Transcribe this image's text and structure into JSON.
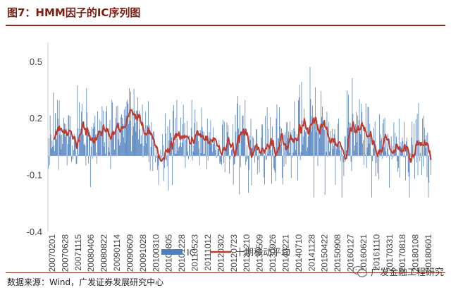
{
  "figure_title": "图7：HMM因子的IC序列图",
  "source_note": "数据来源：Wind，广发证券发展研究中心",
  "watermark": {
    "text": "广发金融工程研究",
    "icon": "wechat-icon"
  },
  "colors": {
    "title": "#7a1d12",
    "rule": "#8a2a1c",
    "ic_bar": "#4f7fbf",
    "ma_line": "#c0392b",
    "axis": "#d0d0d0"
  },
  "chart_data": {
    "type": "bar",
    "title": "",
    "xlabel": "",
    "ylabel": "",
    "ylim": [
      -0.4,
      0.6
    ],
    "y_ticks": [
      -0.4,
      -0.1,
      0.2,
      0.5
    ],
    "y_tick_labels": [
      "-0.4",
      "-0.1",
      "0.2",
      "0.5"
    ],
    "grid": false,
    "legend_position": "bottom",
    "x_tick_labels": [
      "20070201",
      "20070628",
      "20071115",
      "20080406",
      "20080822",
      "20090114",
      "20090609",
      "20091028",
      "20100310",
      "20100805",
      "20101228",
      "20110523",
      "20111012",
      "20120302",
      "20120723",
      "20121210",
      "20130509",
      "20130926",
      "20140221",
      "20140710",
      "20141128",
      "20150422",
      "20150908",
      "20160127",
      "20160621",
      "20161110",
      "20170331",
      "20170818",
      "20180108",
      "20180601"
    ],
    "series": [
      {
        "name": "IC",
        "type": "bar"
      },
      {
        "name": "十期移动平均",
        "type": "line",
        "window": 10
      }
    ],
    "note": "Weekly IC series from 2007-02-01 to 2018-08, roughly 590 observations; values estimated from the figure.",
    "anchors": [
      {
        "t": 0.0,
        "m": 0.095,
        "a": 0.12
      },
      {
        "t": 0.02,
        "m": 0.13,
        "a": 0.1
      },
      {
        "t": 0.05,
        "m": 0.1,
        "a": 0.11
      },
      {
        "t": 0.08,
        "m": 0.12,
        "a": 0.12
      },
      {
        "t": 0.11,
        "m": 0.09,
        "a": 0.11
      },
      {
        "t": 0.14,
        "m": 0.14,
        "a": 0.12
      },
      {
        "t": 0.17,
        "m": 0.1,
        "a": 0.11
      },
      {
        "t": 0.2,
        "m": 0.15,
        "a": 0.12
      },
      {
        "t": 0.23,
        "m": 0.11,
        "a": 0.12
      },
      {
        "t": 0.25,
        "m": 0.1,
        "a": 0.11
      },
      {
        "t": 0.27,
        "m": 0.04,
        "a": 0.1
      },
      {
        "t": 0.29,
        "m": 0.0,
        "a": 0.11
      },
      {
        "t": 0.31,
        "m": 0.06,
        "a": 0.11
      },
      {
        "t": 0.34,
        "m": 0.09,
        "a": 0.11
      },
      {
        "t": 0.37,
        "m": 0.06,
        "a": 0.1
      },
      {
        "t": 0.4,
        "m": 0.1,
        "a": 0.1
      },
      {
        "t": 0.43,
        "m": 0.08,
        "a": 0.1
      },
      {
        "t": 0.46,
        "m": 0.05,
        "a": 0.1
      },
      {
        "t": 0.49,
        "m": 0.1,
        "a": 0.11
      },
      {
        "t": 0.52,
        "m": 0.05,
        "a": 0.11
      },
      {
        "t": 0.55,
        "m": 0.02,
        "a": 0.11
      },
      {
        "t": 0.58,
        "m": 0.11,
        "a": 0.12
      },
      {
        "t": 0.61,
        "m": 0.06,
        "a": 0.11
      },
      {
        "t": 0.64,
        "m": 0.09,
        "a": 0.12
      },
      {
        "t": 0.67,
        "m": 0.12,
        "a": 0.13
      },
      {
        "t": 0.7,
        "m": 0.14,
        "a": 0.15
      },
      {
        "t": 0.73,
        "m": 0.11,
        "a": 0.13
      },
      {
        "t": 0.76,
        "m": 0.09,
        "a": 0.12
      },
      {
        "t": 0.79,
        "m": 0.13,
        "a": 0.13
      },
      {
        "t": 0.82,
        "m": 0.08,
        "a": 0.12
      },
      {
        "t": 0.85,
        "m": 0.06,
        "a": 0.11
      },
      {
        "t": 0.88,
        "m": 0.05,
        "a": 0.1
      },
      {
        "t": 0.91,
        "m": 0.06,
        "a": 0.1
      },
      {
        "t": 0.94,
        "m": 0.04,
        "a": 0.11
      },
      {
        "t": 0.97,
        "m": 0.05,
        "a": 0.11
      },
      {
        "t": 1.0,
        "m": 0.05,
        "a": 0.11
      }
    ]
  }
}
